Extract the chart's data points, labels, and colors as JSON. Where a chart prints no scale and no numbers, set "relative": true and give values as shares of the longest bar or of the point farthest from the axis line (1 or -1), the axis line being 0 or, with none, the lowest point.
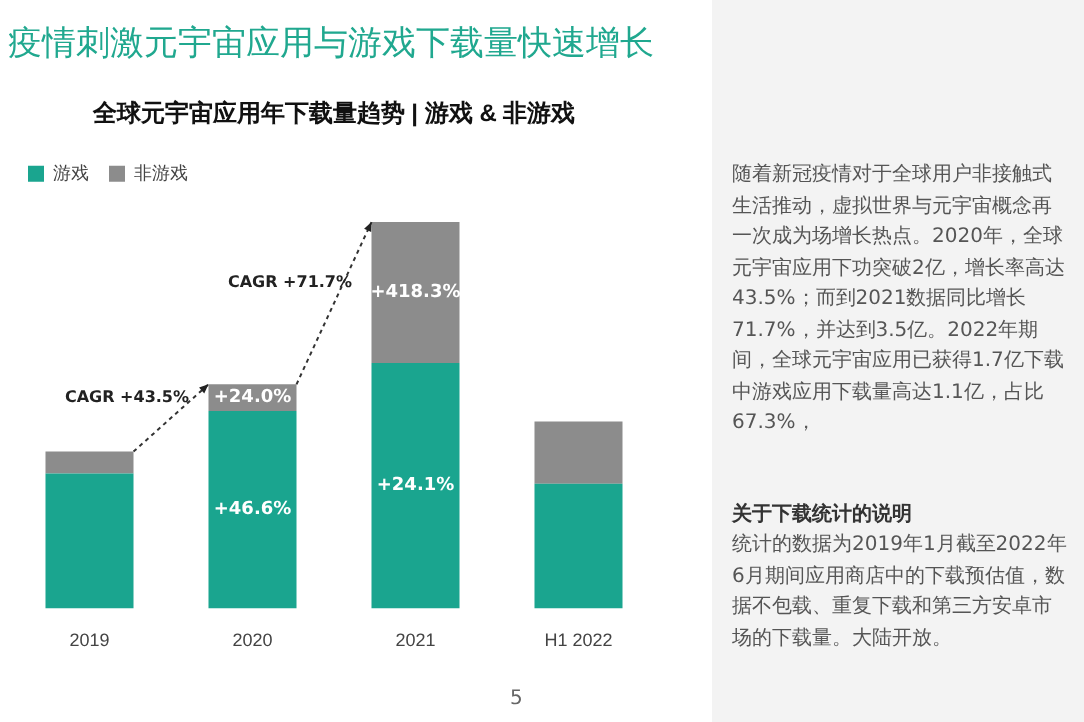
{
  "chart_data": {
    "type": "bar",
    "title": "疫情刺激元宇宙应用与游戏下载量快速增长",
    "subtitle": "全球元宇宙应用年下载量趋势 | 游戏 & 非游戏",
    "categories": [
      "2019",
      "2020",
      "2021",
      "H1 2022"
    ],
    "stacked": true,
    "relative": true,
    "legend": "top left",
    "series": [
      {
        "name": "游戏",
        "color": "#1aa58f",
        "values": [
          0.349,
          0.511,
          0.635,
          0.323
        ]
      },
      {
        "name": "非游戏",
        "color": "#8c8c8c",
        "values": [
          0.057,
          0.069,
          0.365,
          0.161
        ]
      }
    ],
    "annotations": [
      "+46.6%",
      "+24.0%",
      "+24.1%",
      "+418.3%",
      "CAGR +43.5%",
      "CAGR +71.7%",
      "随着新冠疫情对于全球用户非接触式生活推动，虚拟世界与元宇宙概念再一次成为场增长热点。2020年，全球元宇宙应用下功突破2亿，增长率高达43.5%；而到2021数据同比增长71.7%，并达到3.5亿。2022年期间，全球元宇宙应用已获得1.7亿下载中游戏应用下载量高达1.1亿，占比67.3%，",
      "关于下载统计的说明",
      "统计的数据为2019年1月截至2022年6月期间应用商店中的下载预估值，数据不包载、重复下载和第三方安卓市场的下载量。大陆开放。",
      "5"
    ]
  }
}
